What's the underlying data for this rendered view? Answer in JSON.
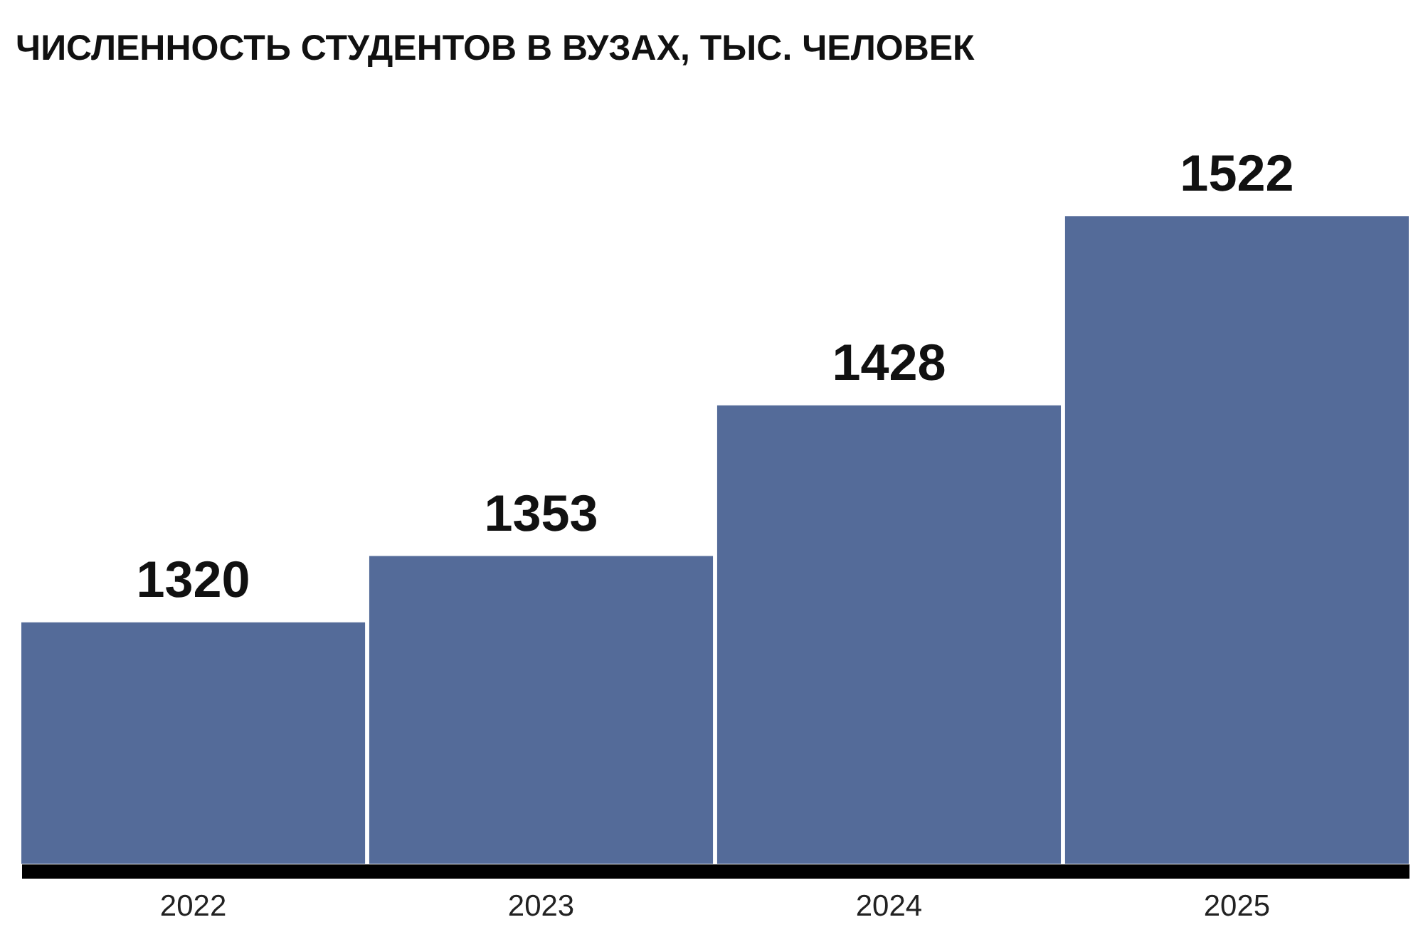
{
  "chart_data": {
    "type": "bar",
    "title": "ЧИСЛЕННОСТЬ СТУДЕНТОВ В ВУЗАХ, ТЫС. ЧЕЛОВЕК",
    "categories": [
      "2022",
      "2023",
      "2024",
      "2025"
    ],
    "values": [
      1320,
      1353,
      1428,
      1522
    ],
    "color": "#546b99",
    "ylim": [
      1200,
      1522
    ],
    "data_labels": true,
    "tick_labels": "x",
    "grid": false
  }
}
